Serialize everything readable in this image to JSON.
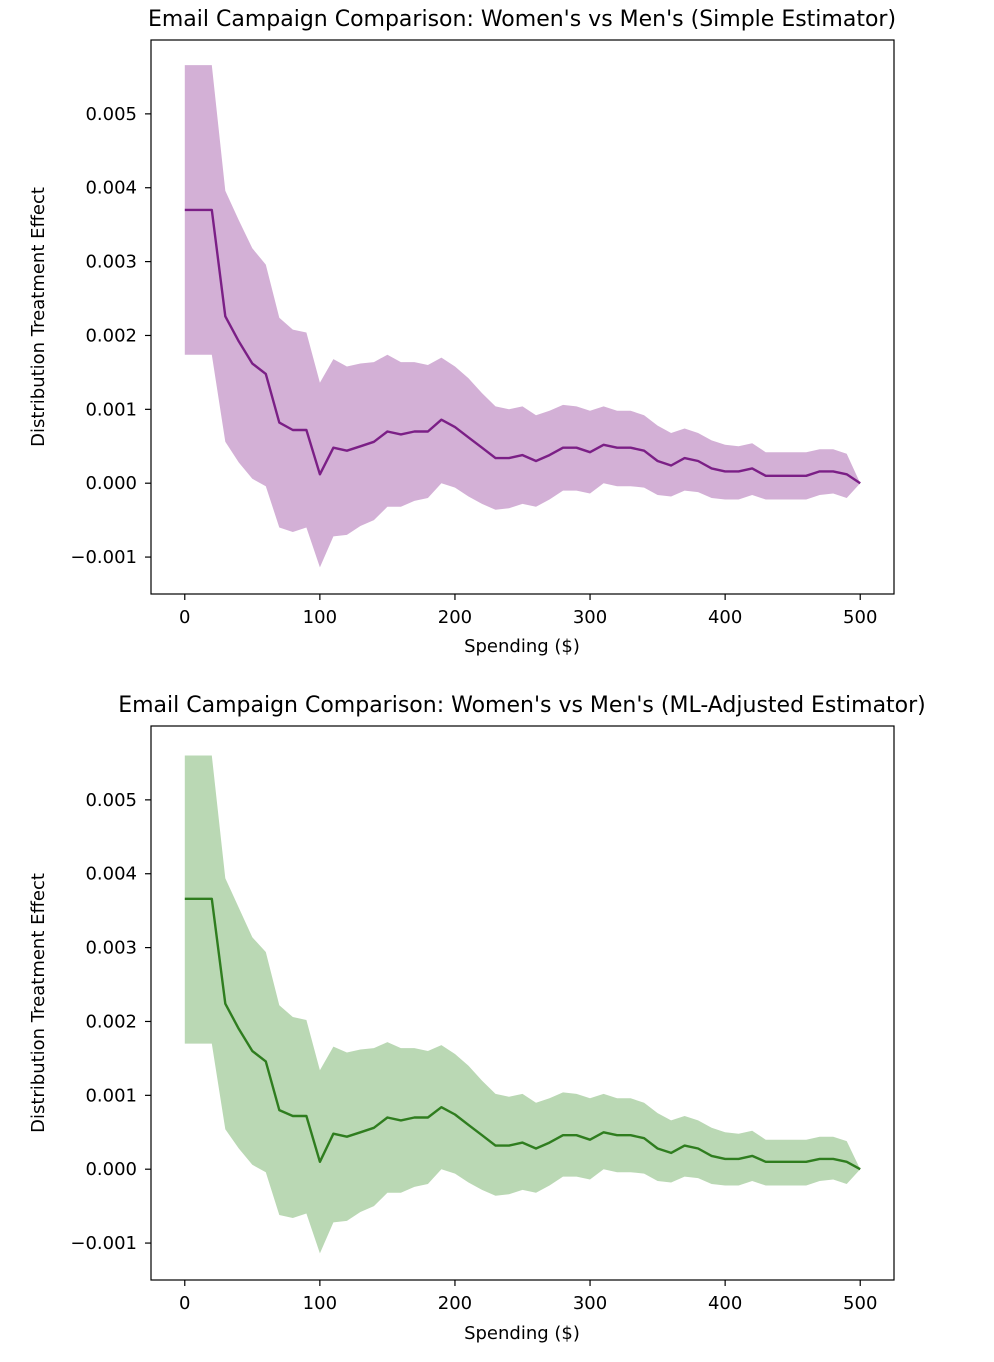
{
  "chart_data": [
    {
      "type": "line",
      "title": "Email Campaign Comparison: Women's vs Men's (Simple Estimator)",
      "xlabel": "Spending ($)",
      "ylabel": "Distribution Treatment Effect",
      "xlim": [
        -25,
        525
      ],
      "ylim": [
        -0.0015,
        0.006
      ],
      "xticks": [
        0,
        100,
        200,
        300,
        400,
        500
      ],
      "xtick_labels": [
        "0",
        "100",
        "200",
        "300",
        "400",
        "500"
      ],
      "yticks": [
        -0.001,
        0.0,
        0.001,
        0.002,
        0.003,
        0.004,
        0.005
      ],
      "ytick_labels": [
        "−0.001",
        "0.000",
        "0.001",
        "0.002",
        "0.003",
        "0.004",
        "0.005"
      ],
      "grid": false,
      "line_color": "#7b1f86",
      "band_color": "#d3b0d6",
      "x": [
        0,
        10,
        20,
        30,
        40,
        50,
        60,
        70,
        80,
        90,
        100,
        110,
        120,
        130,
        140,
        150,
        160,
        170,
        180,
        190,
        200,
        210,
        220,
        230,
        240,
        250,
        260,
        270,
        280,
        290,
        300,
        310,
        320,
        330,
        340,
        350,
        360,
        370,
        380,
        390,
        400,
        410,
        420,
        430,
        440,
        450,
        460,
        470,
        480,
        490,
        500
      ],
      "series": [
        {
          "role": "estimate",
          "values": [
            0.0037,
            0.0037,
            0.0037,
            0.00226,
            0.00192,
            0.00162,
            0.00148,
            0.00082,
            0.00072,
            0.00072,
            0.00012,
            0.00048,
            0.00044,
            0.0005,
            0.00056,
            0.0007,
            0.00066,
            0.0007,
            0.0007,
            0.00086,
            0.00076,
            0.00062,
            0.00048,
            0.00034,
            0.00034,
            0.00038,
            0.0003,
            0.00038,
            0.00048,
            0.00048,
            0.00042,
            0.00052,
            0.00048,
            0.00048,
            0.00044,
            0.0003,
            0.00024,
            0.00034,
            0.0003,
            0.0002,
            0.00016,
            0.00016,
            0.0002,
            0.0001,
            0.0001,
            0.0001,
            0.0001,
            0.00016,
            0.00016,
            0.00012,
            0.0
          ]
        },
        {
          "role": "upper",
          "values": [
            0.00566,
            0.00566,
            0.00566,
            0.00396,
            0.00356,
            0.00318,
            0.00296,
            0.00224,
            0.00208,
            0.00204,
            0.00136,
            0.00168,
            0.00158,
            0.00162,
            0.00164,
            0.00174,
            0.00164,
            0.00164,
            0.0016,
            0.0017,
            0.00158,
            0.00142,
            0.00122,
            0.00104,
            0.001,
            0.00104,
            0.00092,
            0.00098,
            0.00106,
            0.00104,
            0.00098,
            0.00104,
            0.00098,
            0.00098,
            0.00092,
            0.00078,
            0.00068,
            0.00074,
            0.00068,
            0.00058,
            0.00052,
            0.0005,
            0.00054,
            0.00042,
            0.00042,
            0.00042,
            0.00042,
            0.00046,
            0.00046,
            0.0004,
            0.0
          ]
        },
        {
          "role": "lower",
          "values": [
            0.00174,
            0.00174,
            0.00174,
            0.00056,
            0.00028,
            6e-05,
            -4e-05,
            -0.0006,
            -0.00066,
            -0.0006,
            -0.00114,
            -0.00072,
            -0.0007,
            -0.00058,
            -0.0005,
            -0.00032,
            -0.00032,
            -0.00024,
            -0.0002,
            0.0,
            -6e-05,
            -0.00018,
            -0.00028,
            -0.00036,
            -0.00034,
            -0.00028,
            -0.00032,
            -0.00022,
            -0.0001,
            -0.0001,
            -0.00014,
            -0.0,
            -4e-05,
            -4e-05,
            -6e-05,
            -0.00016,
            -0.00018,
            -0.0001,
            -0.00012,
            -0.0002,
            -0.00022,
            -0.00022,
            -0.00016,
            -0.00022,
            -0.00022,
            -0.00022,
            -0.00022,
            -0.00016,
            -0.00014,
            -0.0002,
            0.0
          ]
        }
      ]
    },
    {
      "type": "line",
      "title": "Email Campaign Comparison: Women's vs Men's (ML-Adjusted Estimator)",
      "xlabel": "Spending ($)",
      "ylabel": "Distribution Treatment Effect",
      "xlim": [
        -25,
        525
      ],
      "ylim": [
        -0.0015,
        0.006
      ],
      "xticks": [
        0,
        100,
        200,
        300,
        400,
        500
      ],
      "xtick_labels": [
        "0",
        "100",
        "200",
        "300",
        "400",
        "500"
      ],
      "yticks": [
        -0.001,
        0.0,
        0.001,
        0.002,
        0.003,
        0.004,
        0.005
      ],
      "ytick_labels": [
        "−0.001",
        "0.000",
        "0.001",
        "0.002",
        "0.003",
        "0.004",
        "0.005"
      ],
      "grid": false,
      "line_color": "#2f7d1f",
      "band_color": "#bad8b4",
      "x": [
        0,
        10,
        20,
        30,
        40,
        50,
        60,
        70,
        80,
        90,
        100,
        110,
        120,
        130,
        140,
        150,
        160,
        170,
        180,
        190,
        200,
        210,
        220,
        230,
        240,
        250,
        260,
        270,
        280,
        290,
        300,
        310,
        320,
        330,
        340,
        350,
        360,
        370,
        380,
        390,
        400,
        410,
        420,
        430,
        440,
        450,
        460,
        470,
        480,
        490,
        500
      ],
      "series": [
        {
          "role": "estimate",
          "values": [
            0.00366,
            0.00366,
            0.00366,
            0.00224,
            0.0019,
            0.0016,
            0.00146,
            0.0008,
            0.00072,
            0.00072,
            0.0001,
            0.00048,
            0.00044,
            0.0005,
            0.00056,
            0.0007,
            0.00066,
            0.0007,
            0.0007,
            0.00084,
            0.00074,
            0.0006,
            0.00046,
            0.00032,
            0.00032,
            0.00036,
            0.00028,
            0.00036,
            0.00046,
            0.00046,
            0.0004,
            0.0005,
            0.00046,
            0.00046,
            0.00042,
            0.00028,
            0.00022,
            0.00032,
            0.00028,
            0.00018,
            0.00014,
            0.00014,
            0.00018,
            0.0001,
            0.0001,
            0.0001,
            0.0001,
            0.00014,
            0.00014,
            0.0001,
            0.0
          ]
        },
        {
          "role": "upper",
          "values": [
            0.0056,
            0.0056,
            0.0056,
            0.00394,
            0.00354,
            0.00314,
            0.00294,
            0.00222,
            0.00206,
            0.00202,
            0.00134,
            0.00166,
            0.00158,
            0.00162,
            0.00164,
            0.00172,
            0.00164,
            0.00164,
            0.0016,
            0.00168,
            0.00156,
            0.0014,
            0.0012,
            0.00102,
            0.00098,
            0.00102,
            0.0009,
            0.00096,
            0.00104,
            0.00102,
            0.00096,
            0.00102,
            0.00096,
            0.00096,
            0.0009,
            0.00076,
            0.00066,
            0.00072,
            0.00066,
            0.00056,
            0.0005,
            0.00048,
            0.00052,
            0.0004,
            0.0004,
            0.0004,
            0.0004,
            0.00044,
            0.00044,
            0.00038,
            0.0
          ]
        },
        {
          "role": "lower",
          "values": [
            0.0017,
            0.0017,
            0.0017,
            0.00054,
            0.00028,
            6e-05,
            -4e-05,
            -0.00062,
            -0.00066,
            -0.0006,
            -0.00114,
            -0.00072,
            -0.0007,
            -0.00058,
            -0.0005,
            -0.00032,
            -0.00032,
            -0.00024,
            -0.0002,
            0.0,
            -6e-05,
            -0.00018,
            -0.00028,
            -0.00036,
            -0.00034,
            -0.00028,
            -0.00032,
            -0.00022,
            -0.0001,
            -0.0001,
            -0.00014,
            -0.0,
            -4e-05,
            -4e-05,
            -6e-05,
            -0.00016,
            -0.00018,
            -0.0001,
            -0.00012,
            -0.0002,
            -0.00022,
            -0.00022,
            -0.00016,
            -0.00022,
            -0.00022,
            -0.00022,
            -0.00022,
            -0.00016,
            -0.00014,
            -0.0002,
            0.0
          ]
        }
      ]
    }
  ]
}
